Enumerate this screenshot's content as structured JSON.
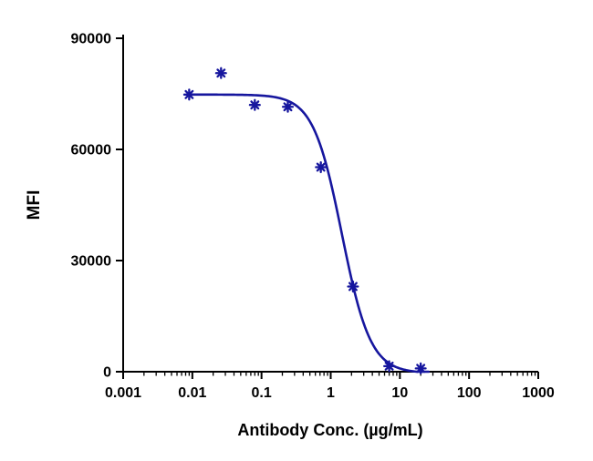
{
  "chart_data": {
    "type": "scatter",
    "title": "",
    "xlabel": "Antibody Conc. (µg/mL)",
    "ylabel": "MFI",
    "x_scale": "log",
    "xlim": [
      0.001,
      1000
    ],
    "ylim": [
      0,
      90000
    ],
    "x_ticks": [
      0.001,
      0.01,
      0.1,
      1,
      10,
      100,
      1000
    ],
    "x_tick_labels": [
      "0.001",
      "0.01",
      "0.1",
      "1",
      "10",
      "100",
      "1000"
    ],
    "y_ticks": [
      0,
      30000,
      60000,
      90000
    ],
    "y_tick_labels": [
      "0",
      "30000",
      "60000",
      "90000"
    ],
    "grid": false,
    "legend": "none",
    "marker": "asterisk",
    "accent_color": "#16169e",
    "axis_color": "#000000",
    "series": [
      {
        "name": "MFI",
        "points": [
          {
            "x": 0.009,
            "y": 74800
          },
          {
            "x": 0.026,
            "y": 80600
          },
          {
            "x": 0.08,
            "y": 72000
          },
          {
            "x": 0.24,
            "y": 71500
          },
          {
            "x": 0.72,
            "y": 55200
          },
          {
            "x": 2.1,
            "y": 23000
          },
          {
            "x": 7.0,
            "y": 1500
          },
          {
            "x": 20.0,
            "y": 900
          }
        ]
      }
    ],
    "fit_curve": {
      "model": "4PL-inhibition",
      "top": 74800,
      "bottom": -400,
      "ic50": 1.45,
      "hill": 2.1,
      "x_range": [
        0.0085,
        26
      ]
    }
  }
}
